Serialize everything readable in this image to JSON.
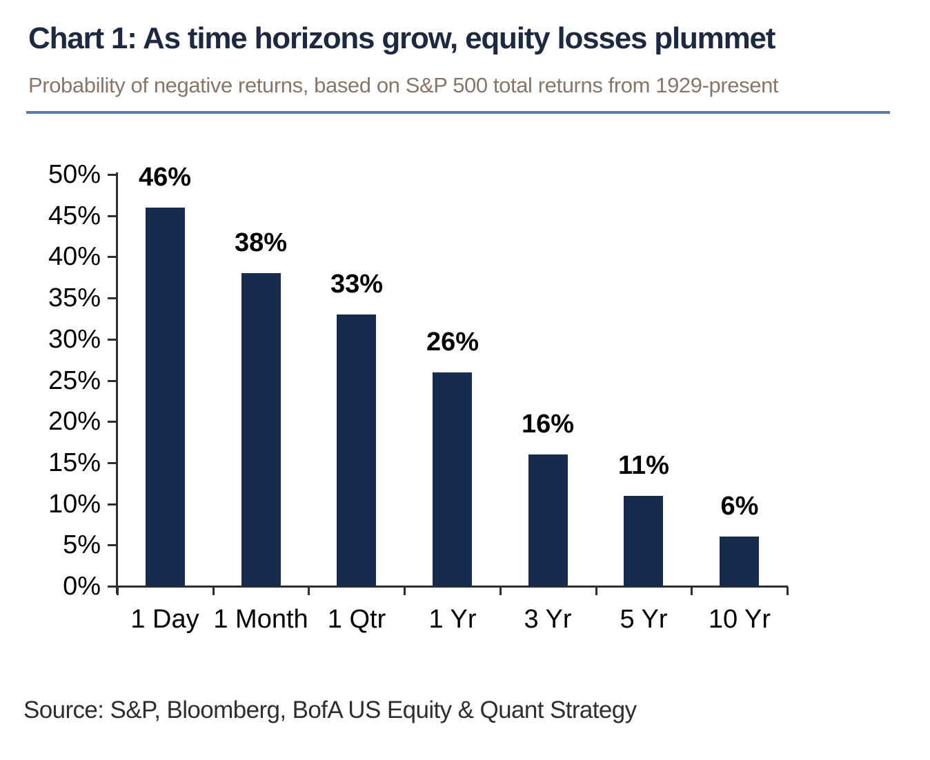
{
  "header": {
    "title": "Chart 1: As time horizons grow, equity losses plummet",
    "subtitle": "Probability of negative returns, based on S&P 500 total returns from 1929-present"
  },
  "footer": {
    "source": "Source: S&P, Bloomberg, BofA US Equity & Quant Strategy"
  },
  "colors": {
    "title": "#1c2940",
    "subtitle": "#877669",
    "divider": "#5d7ba3",
    "axis": "#2e2e2e",
    "bar": "#162b4e",
    "label": "#000000",
    "source": "#2e2e2e"
  },
  "chart_data": {
    "type": "bar",
    "title": "Chart 1: As time horizons grow, equity losses plummet",
    "subtitle": "Probability of negative returns, based on S&P 500 total returns from 1929-present",
    "categories": [
      "1 Day",
      "1 Month",
      "1 Qtr",
      "1 Yr",
      "3 Yr",
      "5 Yr",
      "10 Yr"
    ],
    "values": [
      46,
      38,
      33,
      26,
      16,
      11,
      6
    ],
    "data_labels": [
      "46%",
      "38%",
      "33%",
      "26%",
      "16%",
      "11%",
      "6%"
    ],
    "xlabel": "",
    "ylabel": "",
    "ylim": [
      0,
      50
    ],
    "ytick_step": 5,
    "ytick_labels": [
      "0%",
      "5%",
      "10%",
      "15%",
      "20%",
      "25%",
      "30%",
      "35%",
      "40%",
      "45%",
      "50%"
    ],
    "grid": false,
    "legend": false,
    "bar_color": "#162b4e",
    "source": "Source: S&P, Bloomberg, BofA US Equity & Quant Strategy"
  }
}
